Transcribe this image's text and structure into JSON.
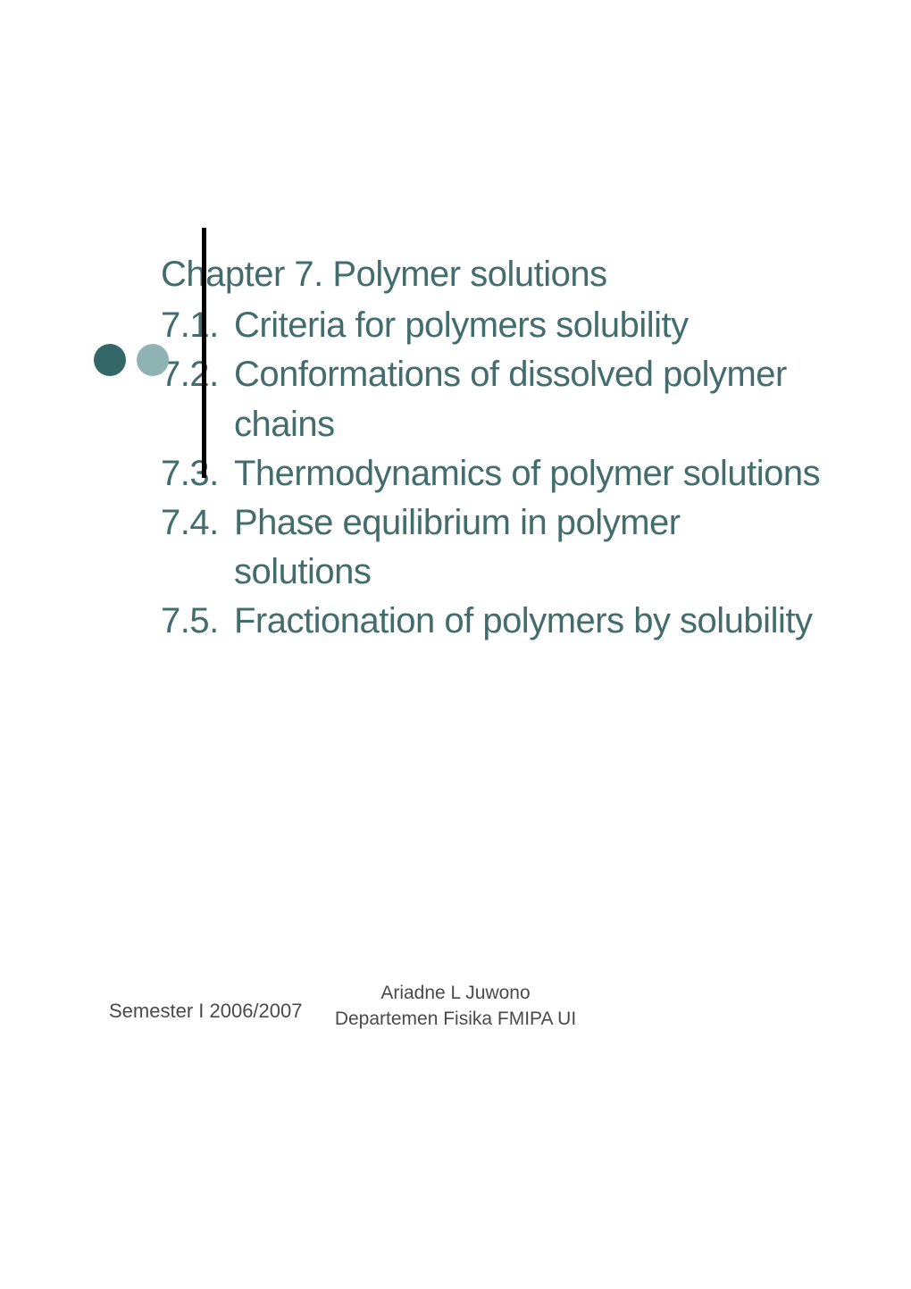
{
  "slide": {
    "chapter_title": "Chapter 7. Polymer solutions",
    "sections": [
      {
        "number": "7.1.",
        "text": "Criteria for polymers solubility"
      },
      {
        "number": "7.2.",
        "text": "Conformations of dissolved polymer chains"
      },
      {
        "number": "7.3.",
        "text": "Thermodynamics of polymer solutions"
      },
      {
        "number": "7.4.",
        "text": "Phase equilibrium in polymer solutions"
      },
      {
        "number": "7.5.",
        "text": "Fractionation of polymers by solubility"
      }
    ],
    "bullet_colors": [
      "#336666",
      "#8fb3b3"
    ],
    "text_color": "#436c6c",
    "vertical_line_color": "#000000",
    "background_color": "#ffffff",
    "title_fontsize": 40,
    "section_fontsize": 40
  },
  "footer": {
    "left": "Semester I 2006/2007",
    "center_line1": "Ariadne L Juwono",
    "center_line2": "Departemen Fisika FMIPA UI",
    "footer_fontsize": 22,
    "footer_color": "#4a4a4a"
  }
}
